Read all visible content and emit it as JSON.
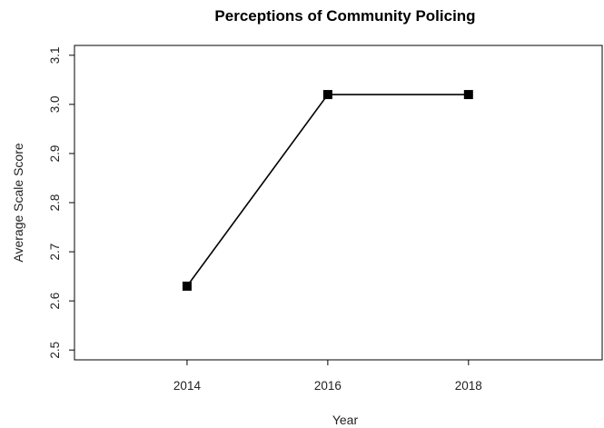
{
  "chart_data": {
    "type": "line",
    "title": "Perceptions of Community Policing",
    "xlabel": "Year",
    "ylabel": "Average Scale Score",
    "x": [
      2014,
      2016,
      2018
    ],
    "xticks": [
      "2014",
      "2016",
      "2018"
    ],
    "xlim": [
      2012.4,
      2019.9
    ],
    "ylim": [
      2.48,
      3.12
    ],
    "yticks": [
      2.5,
      2.6,
      2.7,
      2.8,
      2.9,
      3.0,
      3.1
    ],
    "ytick_labels": [
      "2.5",
      "2.6",
      "2.7",
      "2.8",
      "2.9",
      "3.0",
      "3.1"
    ],
    "series": [
      {
        "values": [
          2.63,
          3.02,
          3.02
        ]
      }
    ],
    "marker": "square",
    "grid": false,
    "legend": "none",
    "colors": {
      "line": "#000000",
      "marker": "#000000",
      "axis": "#000000",
      "background": "#ffffff"
    }
  }
}
